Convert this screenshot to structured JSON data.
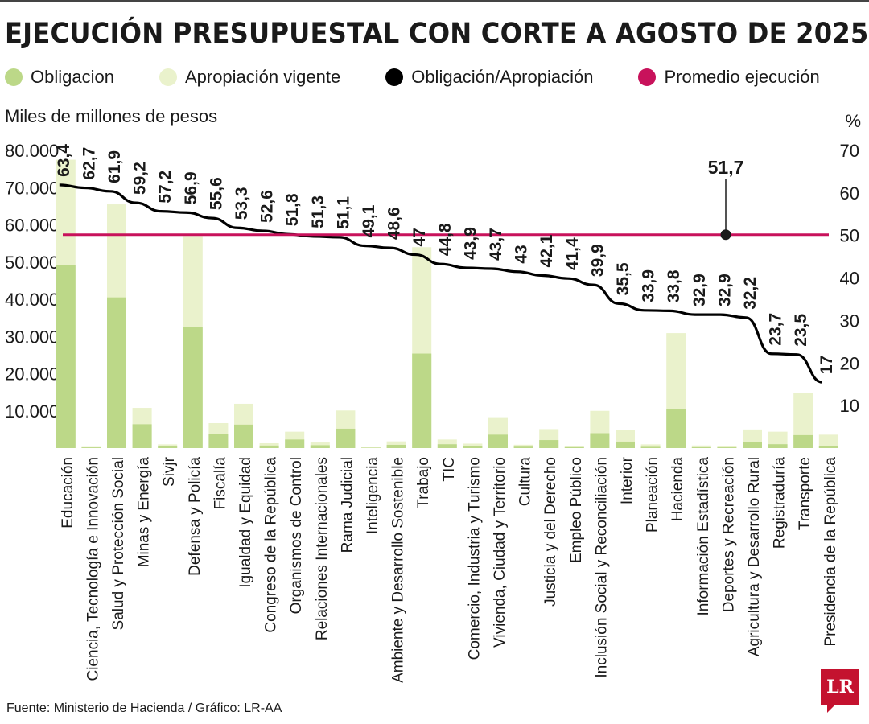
{
  "title": "EJECUCIÓN PRESUPUESTAL CON CORTE A AGOSTO DE 2025",
  "legend": {
    "obligacion": "Obligacion",
    "apropiacion": "Apropiación vigente",
    "ratio": "Obligación/Apropiación",
    "promedio": "Promedio ejecución"
  },
  "colors": {
    "obligacion": "#bcd888",
    "apropiacion": "#eaf2cc",
    "ratio": "#000000",
    "promedio": "#c8125b"
  },
  "source": "Fuente: Ministerio de Hacienda / Gráfico: LR-AA",
  "logo": "LR",
  "chart_data": {
    "type": "bar",
    "ylabel": "Miles de millones de pesos",
    "y2label": "%",
    "ylim": [
      0,
      80000
    ],
    "y2lim": [
      0,
      70
    ],
    "yticks": [
      "10.000",
      "20.000",
      "30.000",
      "40.000",
      "50.000",
      "60.000",
      "70.000",
      "80.000"
    ],
    "y2ticks": [
      "10",
      "20",
      "30",
      "40",
      "50",
      "60",
      "70"
    ],
    "categories": [
      "Educación",
      "Ciencia, Tecnología e Innovación",
      "Salud y Protección Social",
      "Minas y Energía",
      "Sivjr",
      "Defensa y Policía",
      "Fiscalía",
      "Igualdad y Equidad",
      "Congreso de la República",
      "Organismos de Control",
      "Relaciones Internacionales",
      "Rama Judicial",
      "Inteligencia",
      "Ambiente y Desarrollo Sostenible",
      "Trabajo",
      "TIC",
      "Comercio, Industria y Turismo",
      "Vivienda, Ciudad y Territorio",
      "Cultura",
      "Justicia y del Derecho",
      "Empleo Público",
      "Inclusión Social y Reconciliación",
      "Interior",
      "Planeación",
      "Hacienda",
      "Información Estadística",
      "Deportes y Recreación",
      "Agricultura y Desarrollo Rural",
      "Registraduría",
      "Transporte",
      "Presidencia de la República"
    ],
    "series": [
      {
        "name": "Apropiación vigente",
        "values": [
          77500,
          300,
          65500,
          10800,
          1000,
          57000,
          6700,
          11900,
          1300,
          4400,
          1500,
          10100,
          200,
          1800,
          54000,
          2300,
          1200,
          8300,
          900,
          5100,
          550,
          10000,
          4900,
          1000,
          30900,
          700,
          600,
          5000,
          4400,
          14800,
          3600
        ]
      },
      {
        "name": "Obligacion",
        "values": [
          49200,
          190,
          40500,
          6400,
          570,
          32500,
          3700,
          6300,
          680,
          2300,
          770,
          5200,
          100,
          870,
          25400,
          1030,
          530,
          3600,
          390,
          2150,
          230,
          4000,
          1740,
          340,
          10400,
          230,
          200,
          1610,
          1040,
          3480,
          610
        ]
      },
      {
        "name": "Obligación/Apropiación",
        "values": [
          63.4,
          62.7,
          61.9,
          59.2,
          57.2,
          56.9,
          55.6,
          53.3,
          52.6,
          51.8,
          51.3,
          51.1,
          49.1,
          48.6,
          47,
          44.8,
          43.9,
          43.7,
          43,
          42.1,
          41.4,
          39.9,
          35.5,
          33.9,
          33.8,
          32.9,
          32.9,
          32.2,
          23.7,
          23.5,
          17
        ],
        "labels": [
          "63,4",
          "62,7",
          "61,9",
          "59,2",
          "57,2",
          "56,9",
          "55,6",
          "53,3",
          "52,6",
          "51,8",
          "51,3",
          "51,1",
          "49,1",
          "48,6",
          "47",
          "44,8",
          "43,9",
          "43,7",
          "43",
          "42,1",
          "41,4",
          "39,9",
          "35,5",
          "33,9",
          "33,8",
          "32,9",
          "32,9",
          "32,2",
          "23,7",
          "23,5",
          "17"
        ]
      }
    ],
    "promedio": {
      "value": 51.7,
      "label": "51,7"
    }
  }
}
